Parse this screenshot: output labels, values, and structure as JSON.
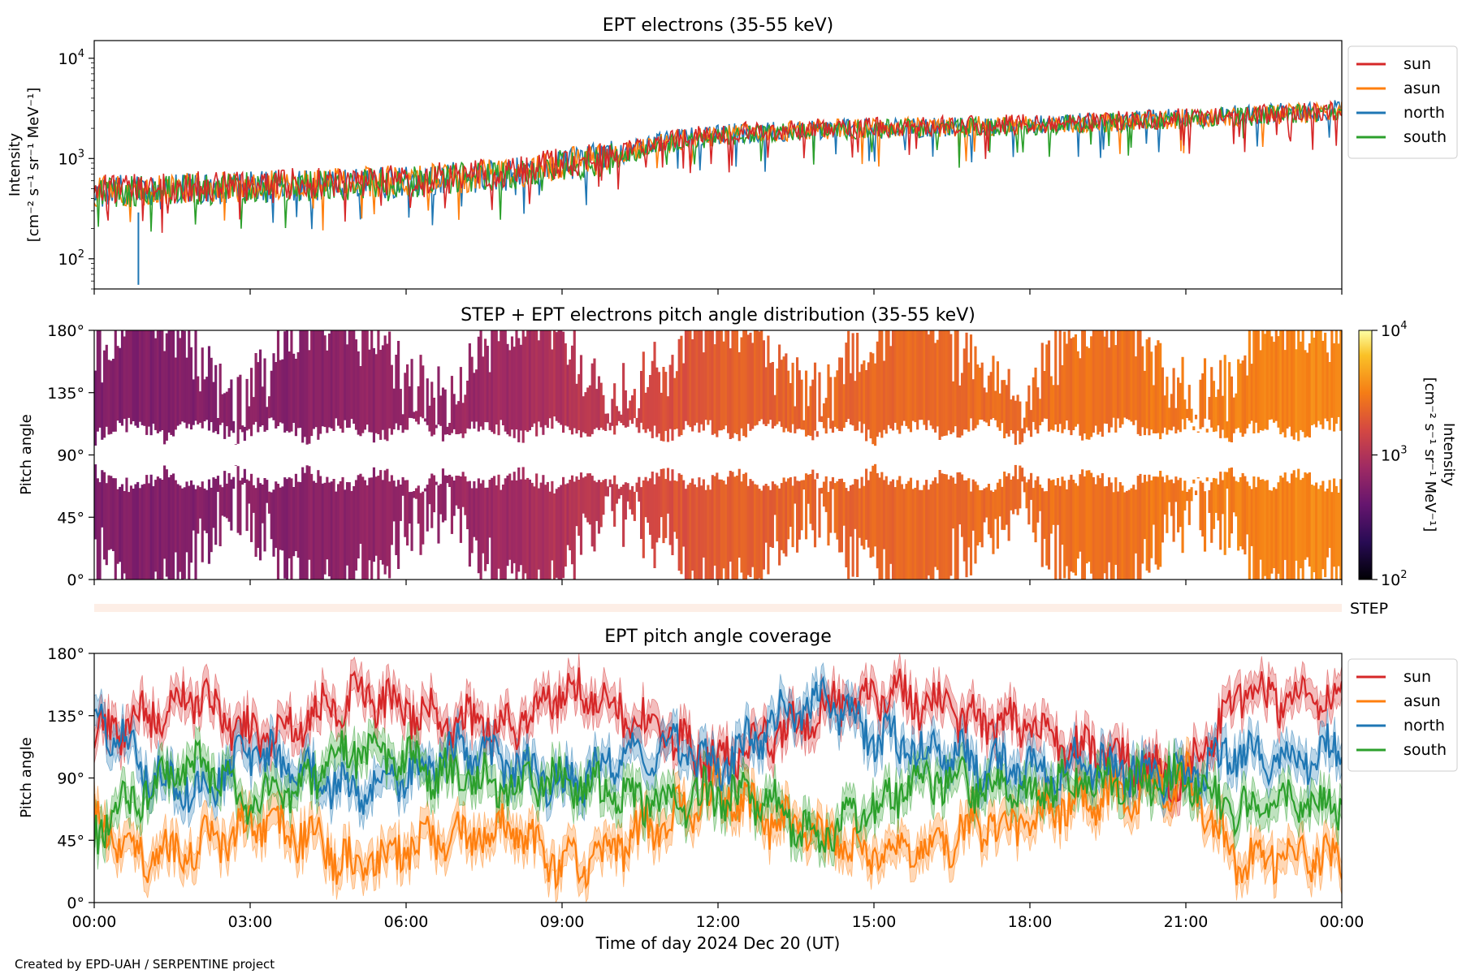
{
  "credit": "Created by EPD-UAH / SERPENTINE project",
  "colors": {
    "sun": "#d62728",
    "asun": "#ff7f0e",
    "north": "#1f77b4",
    "south": "#2ca02c",
    "step_bar": "#fdeee6"
  },
  "chart_data": [
    {
      "id": "intensity",
      "type": "line",
      "title": "EPT electrons (35-55 keV)",
      "ylabel": [
        "Intensity",
        "[cm⁻² s⁻¹ sr⁻¹ MeV⁻¹]"
      ],
      "yscale": "log",
      "ylim": [
        50,
        15000
      ],
      "yticks": [
        {
          "v": 100,
          "base": "10",
          "exp": "2"
        },
        {
          "v": 1000,
          "base": "10",
          "exp": "3"
        },
        {
          "v": 10000,
          "base": "10",
          "exp": "4"
        }
      ],
      "xlim_hours": [
        0,
        24
      ],
      "legend_position": "upper-right outside",
      "x_hours": [
        0,
        2,
        4,
        6,
        8,
        9,
        10,
        11,
        12,
        13,
        14,
        16,
        18,
        20,
        22,
        24
      ],
      "series": [
        {
          "name": "sun",
          "values": [
            500,
            520,
            560,
            620,
            720,
            900,
            1100,
            1500,
            1800,
            1900,
            2000,
            2100,
            2200,
            2400,
            2700,
            3000
          ]
        },
        {
          "name": "asun",
          "values": [
            480,
            500,
            540,
            600,
            700,
            880,
            1050,
            1450,
            1700,
            1850,
            1950,
            2050,
            2150,
            2350,
            2650,
            2950
          ]
        },
        {
          "name": "north",
          "values": [
            470,
            500,
            530,
            590,
            690,
            860,
            1050,
            1500,
            1750,
            1850,
            1950,
            2050,
            2150,
            2400,
            2700,
            3050
          ]
        },
        {
          "name": "south",
          "values": [
            460,
            490,
            520,
            580,
            680,
            850,
            1000,
            1400,
            1650,
            1800,
            1900,
            2000,
            2100,
            2350,
            2600,
            2950
          ]
        }
      ],
      "annotations": [
        {
          "series": "north",
          "x_hour": 0.85,
          "value": 55
        }
      ]
    },
    {
      "id": "pad",
      "type": "heatmap",
      "title": "STEP + EPT electrons pitch angle distribution (35-55 keV)",
      "ylabel": "Pitch angle",
      "ylim": [
        0,
        180
      ],
      "yticks": [
        "0°",
        "45°",
        "90°",
        "135°",
        "180°"
      ],
      "colorbar": {
        "label": [
          "Intensity",
          "[cm⁻² s⁻¹ sr⁻¹ MeV⁻¹]"
        ],
        "scale": "log",
        "range": [
          100,
          10000
        ],
        "ticks": [
          {
            "v": 100,
            "base": "10",
            "exp": "2"
          },
          {
            "v": 1000,
            "base": "10",
            "exp": "3"
          },
          {
            "v": 10000,
            "base": "10",
            "exp": "4"
          }
        ]
      }
    },
    {
      "id": "step",
      "type": "bar",
      "label": "STEP"
    },
    {
      "id": "coverage",
      "type": "line",
      "title": "EPT pitch angle coverage",
      "ylabel": "Pitch angle",
      "ylim": [
        0,
        180
      ],
      "yticks": [
        "0°",
        "45°",
        "90°",
        "135°",
        "180°"
      ],
      "xlabel": "Time of day 2024 Dec 20 (UT)",
      "xticks": [
        "00:00",
        "03:00",
        "06:00",
        "09:00",
        "12:00",
        "15:00",
        "18:00",
        "21:00",
        "00:00"
      ],
      "legend_position": "upper-right outside",
      "x_hours": [
        0,
        1,
        2,
        3,
        4,
        5,
        6,
        7,
        8,
        9,
        10,
        11,
        12,
        13,
        14,
        15,
        16,
        17,
        18,
        19,
        20,
        21,
        22,
        23,
        24
      ],
      "series": [
        {
          "name": "sun",
          "values": [
            120,
            135,
            150,
            120,
            130,
            150,
            140,
            130,
            125,
            155,
            140,
            120,
            100,
            120,
            140,
            150,
            145,
            130,
            125,
            110,
            100,
            90,
            150,
            145,
            150
          ]
        },
        {
          "name": "asun",
          "values": [
            60,
            30,
            40,
            55,
            50,
            25,
            40,
            45,
            55,
            25,
            40,
            60,
            80,
            60,
            45,
            35,
            40,
            55,
            60,
            75,
            80,
            90,
            30,
            35,
            30
          ]
        },
        {
          "name": "north",
          "values": [
            140,
            95,
            80,
            110,
            95,
            80,
            90,
            110,
            100,
            85,
            100,
            115,
            95,
            130,
            145,
            120,
            110,
            100,
            95,
            100,
            95,
            90,
            110,
            100,
            115
          ]
        },
        {
          "name": "south",
          "values": [
            50,
            80,
            100,
            70,
            85,
            110,
            100,
            90,
            85,
            90,
            80,
            70,
            80,
            70,
            45,
            70,
            90,
            85,
            80,
            90,
            85,
            90,
            65,
            75,
            70
          ]
        }
      ]
    }
  ]
}
